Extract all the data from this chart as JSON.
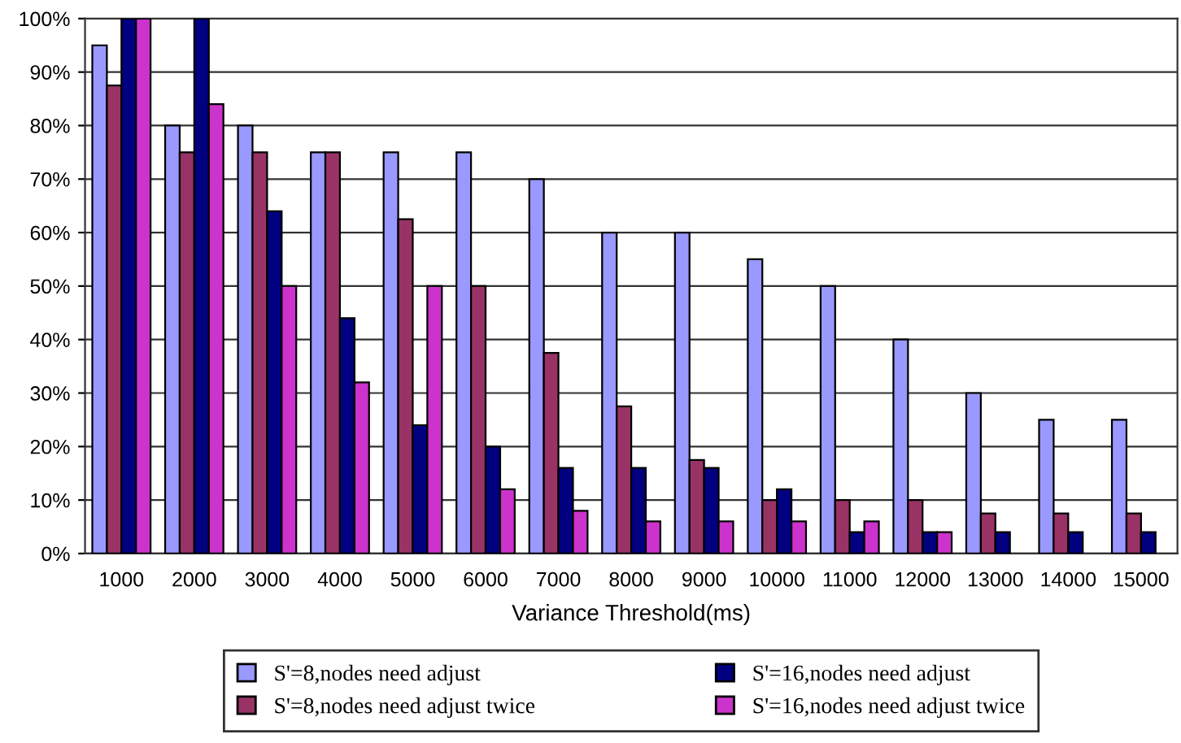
{
  "chart_data": {
    "type": "bar",
    "xlabel": "Variance Threshold(ms)",
    "categories": [
      "1000",
      "2000",
      "3000",
      "4000",
      "5000",
      "6000",
      "7000",
      "8000",
      "9000",
      "10000",
      "11000",
      "12000",
      "13000",
      "14000",
      "15000"
    ],
    "series": [
      {
        "name": "S'=8,nodes need adjust",
        "color": "#9999ff",
        "values": [
          95,
          80,
          80,
          75,
          75,
          75,
          70,
          60,
          60,
          55,
          50,
          40,
          30,
          25,
          25
        ]
      },
      {
        "name": "S'=8,nodes need adjust twice",
        "color": "#993366",
        "values": [
          87.5,
          75,
          75,
          75,
          62.5,
          50,
          37.5,
          27.5,
          17.5,
          10,
          10,
          10,
          7.5,
          7.5,
          7.5
        ]
      },
      {
        "name": "S'=16,nodes need adjust",
        "color": "#000080",
        "values": [
          100,
          100,
          64,
          44,
          24,
          20,
          16,
          16,
          16,
          12,
          4,
          4,
          4,
          4,
          4
        ]
      },
      {
        "name": "S'=16,nodes need adjust twice",
        "color": "#cc33cc",
        "values": [
          100,
          84,
          50,
          32,
          50,
          12,
          8,
          6,
          6,
          6,
          6,
          4,
          null,
          null,
          null
        ]
      }
    ],
    "ylim": [
      0,
      100
    ],
    "yticks": [
      {
        "value": 0,
        "label": "0%"
      },
      {
        "value": 10,
        "label": "10%"
      },
      {
        "value": 20,
        "label": "20%"
      },
      {
        "value": 30,
        "label": "30%"
      },
      {
        "value": 40,
        "label": "40%"
      },
      {
        "value": 50,
        "label": "50%"
      },
      {
        "value": 60,
        "label": "60%"
      },
      {
        "value": 70,
        "label": "70%"
      },
      {
        "value": 80,
        "label": "80%"
      },
      {
        "value": 90,
        "label": "90%"
      },
      {
        "value": 100,
        "label": "100%"
      }
    ],
    "grid": "y",
    "legend": "bottom"
  }
}
